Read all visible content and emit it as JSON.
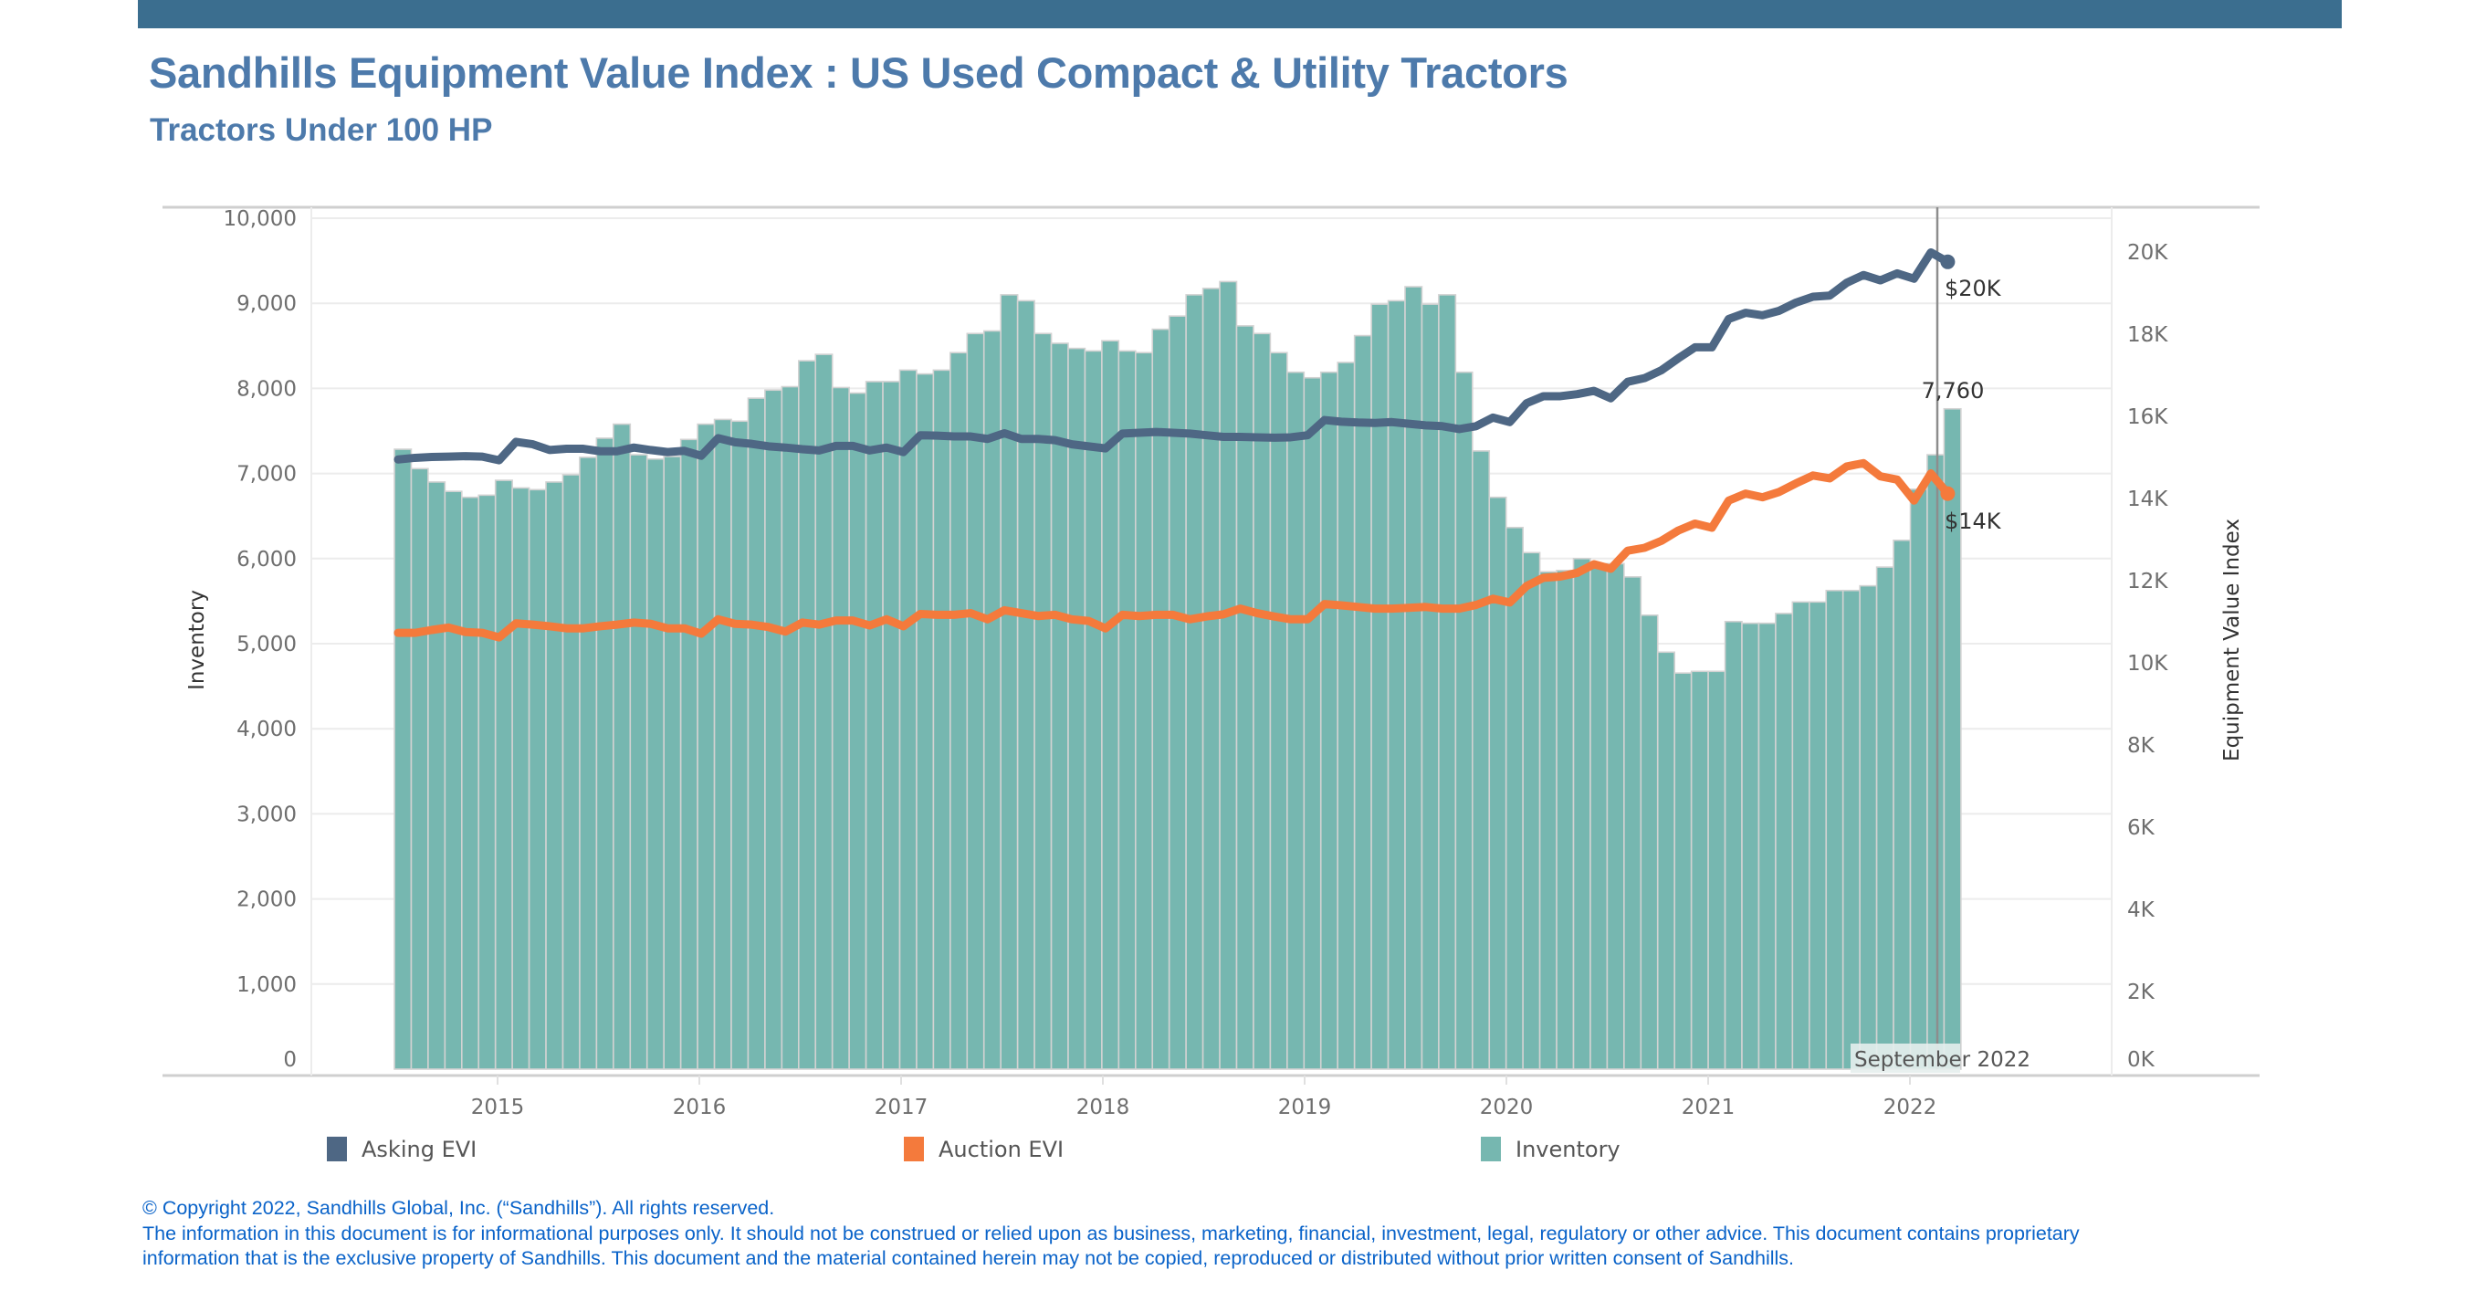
{
  "header": {
    "title": "Sandhills Equipment Value Index : US Used Compact & Utility Tractors",
    "subtitle": "Tractors Under 100 HP",
    "bar_color": "#3b6e8f"
  },
  "chart_data": {
    "type": "bar+line (dual axis)",
    "title": "Sandhills Equipment Value Index : US Used Compact & Utility Tractors",
    "subtitle": "Tractors Under 100 HP",
    "ylabel_left": "Inventory",
    "ylabel_right": "Equipment Value Index",
    "left_ticks": [
      "0",
      "1,000",
      "2,000",
      "3,000",
      "4,000",
      "5,000",
      "6,000",
      "7,000",
      "8,000",
      "9,000",
      "10,000"
    ],
    "left_tick_values": [
      0,
      1000,
      2000,
      3000,
      4000,
      5000,
      6000,
      7000,
      8000,
      9000,
      10000
    ],
    "right_ticks": [
      "0K",
      "2K",
      "4K",
      "6K",
      "8K",
      "10K",
      "12K",
      "14K",
      "16K",
      "18K",
      "20K"
    ],
    "right_tick_values": [
      0,
      2,
      4,
      6,
      8,
      10,
      12,
      14,
      16,
      18,
      20
    ],
    "x_ticks": [
      "2015",
      "2016",
      "2017",
      "2018",
      "2019",
      "2020",
      "2021",
      "2022"
    ],
    "ylim_left": [
      0,
      10000
    ],
    "ylim_right_thousands": [
      0,
      20
    ],
    "grid": true,
    "legend_position": "bottom",
    "categories": [
      "2014-07",
      "2014-08",
      "2014-09",
      "2014-10",
      "2014-11",
      "2014-12",
      "2015-01",
      "2015-02",
      "2015-03",
      "2015-04",
      "2015-05",
      "2015-06",
      "2015-07",
      "2015-08",
      "2015-09",
      "2015-10",
      "2015-11",
      "2015-12",
      "2016-01",
      "2016-02",
      "2016-03",
      "2016-04",
      "2016-05",
      "2016-06",
      "2016-07",
      "2016-08",
      "2016-09",
      "2016-10",
      "2016-11",
      "2016-12",
      "2017-01",
      "2017-02",
      "2017-03",
      "2017-04",
      "2017-05",
      "2017-06",
      "2017-07",
      "2017-08",
      "2017-09",
      "2017-10",
      "2017-11",
      "2017-12",
      "2018-01",
      "2018-02",
      "2018-03",
      "2018-04",
      "2018-05",
      "2018-06",
      "2018-07",
      "2018-08",
      "2018-09",
      "2018-10",
      "2018-11",
      "2018-12",
      "2019-01",
      "2019-02",
      "2019-03",
      "2019-04",
      "2019-05",
      "2019-06",
      "2019-07",
      "2019-08",
      "2019-09",
      "2019-10",
      "2019-11",
      "2019-12",
      "2020-01",
      "2020-02",
      "2020-03",
      "2020-04",
      "2020-05",
      "2020-06",
      "2020-07",
      "2020-08",
      "2020-09",
      "2020-10",
      "2020-11",
      "2020-12",
      "2021-01",
      "2021-02",
      "2021-03",
      "2021-04",
      "2021-05",
      "2021-06",
      "2021-07",
      "2021-08",
      "2021-09",
      "2021-10",
      "2021-11",
      "2021-12",
      "2022-01",
      "2022-02",
      "2022-03"
    ],
    "series": [
      {
        "name": "Inventory",
        "type": "bar",
        "axis": "left",
        "color": "#76b7b0",
        "values": [
          7285,
          7057,
          6900,
          6790,
          6720,
          6745,
          6920,
          6830,
          6810,
          6900,
          6985,
          7190,
          7415,
          7580,
          7220,
          7170,
          7200,
          7400,
          7580,
          7635,
          7615,
          7885,
          7980,
          8020,
          8325,
          8400,
          8010,
          7945,
          8080,
          8080,
          8215,
          8170,
          8215,
          8420,
          8645,
          8675,
          9100,
          9030,
          8645,
          8530,
          8470,
          8440,
          8560,
          8440,
          8420,
          8695,
          8850,
          9100,
          9175,
          9255,
          8735,
          8645,
          8420,
          8190,
          8125,
          8190,
          8305,
          8620,
          8990,
          9030,
          9195,
          8990,
          9100,
          8190,
          7265,
          6720,
          6365,
          6070,
          5845,
          5860,
          6000,
          5940,
          5940,
          5785,
          5335,
          4900,
          4655,
          4675,
          4675,
          5260,
          5240,
          5240,
          5355,
          5490,
          5490,
          5625,
          5625,
          5680,
          5900,
          6215,
          6815,
          7220,
          7760
        ]
      },
      {
        "name": "Asking EVI",
        "type": "line",
        "axis": "right",
        "unit": "$K",
        "color": "#4e6784",
        "values": [
          14.95,
          14.99,
          15.01,
          15.02,
          15.03,
          15.02,
          14.93,
          15.38,
          15.32,
          15.18,
          15.21,
          15.21,
          15.15,
          15.15,
          15.24,
          15.18,
          15.13,
          15.16,
          15.04,
          15.47,
          15.37,
          15.33,
          15.27,
          15.24,
          15.2,
          15.17,
          15.28,
          15.28,
          15.17,
          15.24,
          15.13,
          15.54,
          15.53,
          15.51,
          15.51,
          15.45,
          15.59,
          15.45,
          15.45,
          15.42,
          15.32,
          15.27,
          15.22,
          15.58,
          15.6,
          15.62,
          15.6,
          15.58,
          15.54,
          15.5,
          15.5,
          15.49,
          15.48,
          15.49,
          15.54,
          15.91,
          15.87,
          15.85,
          15.84,
          15.86,
          15.82,
          15.78,
          15.76,
          15.69,
          15.76,
          15.97,
          15.86,
          16.32,
          16.49,
          16.49,
          16.54,
          16.62,
          16.44,
          16.84,
          16.93,
          17.12,
          17.41,
          17.68,
          17.68,
          18.37,
          18.52,
          18.46,
          18.57,
          18.77,
          18.91,
          18.94,
          19.25,
          19.44,
          19.31,
          19.48,
          19.35,
          19.99,
          19.76
        ]
      },
      {
        "name": "Auction EVI",
        "type": "line",
        "axis": "right",
        "unit": "$K",
        "color": "#f47a3c",
        "values": [
          10.73,
          10.73,
          10.8,
          10.86,
          10.75,
          10.73,
          10.62,
          10.96,
          10.93,
          10.89,
          10.84,
          10.84,
          10.89,
          10.93,
          10.98,
          10.95,
          10.84,
          10.84,
          10.71,
          11.06,
          10.95,
          10.93,
          10.87,
          10.76,
          10.98,
          10.93,
          11.03,
          11.03,
          10.91,
          11.06,
          10.89,
          11.19,
          11.17,
          11.17,
          11.21,
          11.06,
          11.28,
          11.21,
          11.14,
          11.17,
          11.06,
          11.02,
          10.84,
          11.17,
          11.14,
          11.17,
          11.17,
          11.06,
          11.13,
          11.18,
          11.32,
          11.21,
          11.13,
          11.06,
          11.06,
          11.43,
          11.4,
          11.36,
          11.32,
          11.32,
          11.34,
          11.36,
          11.32,
          11.32,
          11.41,
          11.56,
          11.47,
          11.87,
          12.07,
          12.1,
          12.19,
          12.4,
          12.29,
          12.73,
          12.8,
          12.97,
          13.22,
          13.39,
          13.29,
          13.95,
          14.12,
          14.03,
          14.16,
          14.37,
          14.56,
          14.49,
          14.78,
          14.86,
          14.54,
          14.46,
          13.95,
          14.61,
          14.12
        ]
      }
    ],
    "annotations": {
      "asking_last": "$20K",
      "auction_last": "$14K",
      "inventory_last": "7,760",
      "reference_line": "September 2022"
    },
    "legend": [
      "Asking EVI",
      "Auction EVI",
      "Inventory"
    ]
  },
  "footer": {
    "line1": "© Copyright 2022, Sandhills Global, Inc. (“Sandhills”). All rights reserved.",
    "line2": "The information in this document is for informational purposes only.  It should not be construed or relied upon as business, marketing, financial, investment, legal, regulatory or other advice. This document contains proprietary",
    "line3": "information that is the exclusive property of Sandhills. This document and the material contained herein may not be copied, reproduced or distributed without prior written consent of Sandhills."
  }
}
